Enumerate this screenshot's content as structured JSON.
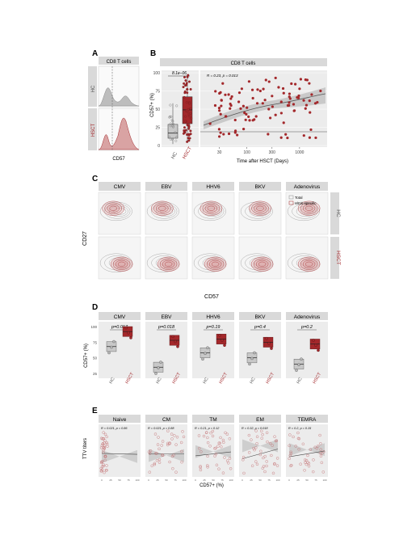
{
  "panels": {
    "A": "A",
    "B": "B",
    "C": "C",
    "D": "D",
    "E": "E"
  },
  "colors": {
    "hc": "#9a9a9a",
    "hsct": "#a3282b",
    "hsct_light": "#d9a3a3",
    "strip": "#d9d9d9",
    "panel": "#ececec"
  },
  "a": {
    "strip": "CD8 T cells",
    "hc": "HC",
    "hsct": "HSCT",
    "xlabel": "CD57"
  },
  "b": {
    "strip": "CD8 T cells",
    "ylabel": "CD57+ (%)",
    "pval": "8.1e–06",
    "stat": "R = 0.23, p = 0.013",
    "xlabel": "Time after HSCT (Days)",
    "box_labels": [
      "HC",
      "HSCT"
    ],
    "yticks": [
      "0",
      "25",
      "50",
      "75",
      "100"
    ],
    "xticks": [
      "30",
      "100",
      "300",
      "1000"
    ]
  },
  "c": {
    "cols": [
      "CMV",
      "EBV",
      "HHV6",
      "BKV",
      "Adenovirus"
    ],
    "rows": [
      "HC",
      "HSCT"
    ],
    "legend": [
      "Total",
      "Virus-specific"
    ],
    "ylabel": "CD27",
    "xlabel": "CD57"
  },
  "d": {
    "cols": [
      "CMV",
      "EBV",
      "HHV6",
      "BKV",
      "Adenovirus"
    ],
    "pvals": [
      "p=0.017",
      "p=0.018",
      "p=0.19",
      "p=0.4",
      "p=0.2"
    ],
    "ylabel": "CD57+ (%)",
    "yticks": [
      "25",
      "50",
      "75",
      "100"
    ],
    "box_labels": [
      "HC",
      "HSCT"
    ]
  },
  "e": {
    "cols": [
      "Naive",
      "CM",
      "TM",
      "EM",
      "TEMRA"
    ],
    "stats": [
      "R = 0.021, p = 0.86",
      "R = 0.021, p = 0.88",
      "R = 0.21, p = 0.12",
      "R = 0.32, p = 0.018",
      "R = 0.2, p = 0.15"
    ],
    "ylabel": "TTV titers",
    "xlabel": "CD57+ (%)"
  },
  "chart_data": [
    {
      "type": "box",
      "panel": "B",
      "title": "CD8 T cells",
      "ylabel": "CD57+ (%)",
      "categories": [
        "HC",
        "HSCT"
      ],
      "ylim": [
        0,
        100
      ],
      "series": [
        {
          "name": "HC",
          "median": 17,
          "q1": 10,
          "q3": 29,
          "min": 2,
          "max": 58
        },
        {
          "name": "HSCT",
          "median": 49,
          "q1": 30,
          "q3": 67,
          "min": 5,
          "max": 98
        }
      ]
    },
    {
      "type": "scatter",
      "panel": "B",
      "xlabel": "Time after HSCT (Days)",
      "ylabel": "CD57+ (%)",
      "xscale": "log",
      "ylim": [
        0,
        100
      ],
      "x": [
        20,
        25,
        30,
        33,
        40,
        45,
        50,
        60,
        70,
        80,
        90,
        100,
        110,
        130,
        150,
        180,
        200,
        230,
        260,
        300,
        350,
        400,
        450,
        500,
        600,
        700,
        800,
        900,
        1000,
        1200,
        1400,
        1700,
        2000,
        2500
      ],
      "y": [
        30,
        55,
        48,
        62,
        40,
        70,
        55,
        35,
        60,
        78,
        45,
        52,
        88,
        65,
        40,
        75,
        58,
        90,
        50,
        68,
        42,
        80,
        60,
        72,
        55,
        85,
        48,
        66,
        78,
        62,
        90,
        70,
        58,
        75
      ]
    },
    {
      "type": "box",
      "panel": "D",
      "ylabel": "CD57+ (%)",
      "categories": [
        "CMV",
        "EBV",
        "HHV6",
        "BKV",
        "Adenovirus"
      ],
      "ylim": [
        25,
        100
      ],
      "series": [
        {
          "name": "HC",
          "values": [
            68,
            35,
            58,
            50,
            40
          ]
        },
        {
          "name": "HSCT",
          "values": [
            92,
            78,
            80,
            75,
            72
          ]
        }
      ]
    }
  ]
}
